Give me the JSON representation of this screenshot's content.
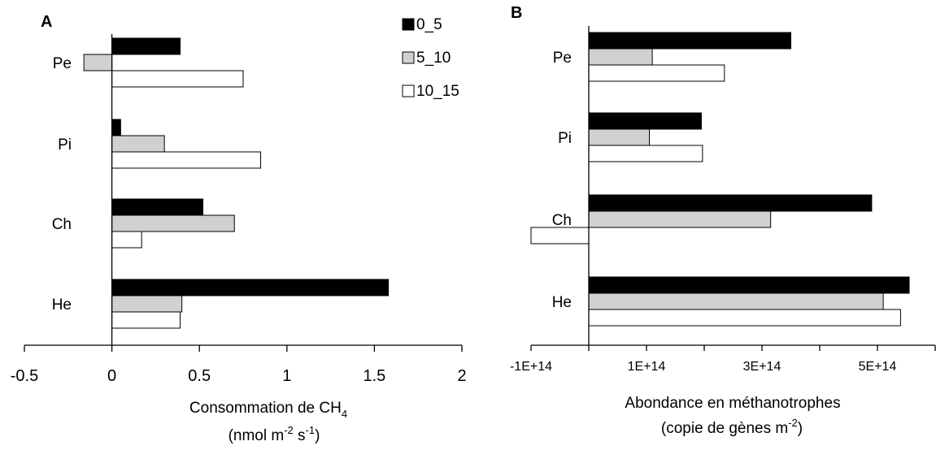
{
  "colors": {
    "s0_5": "#000000",
    "s5_10": "#d0d0d0",
    "s10_15": "#ffffff",
    "outline": "#000000"
  },
  "chart_data": [
    {
      "panel": "A",
      "type": "bar",
      "orientation": "horizontal",
      "categories": [
        "Pe",
        "Pi",
        "Ch",
        "He"
      ],
      "series": [
        {
          "name": "0_5",
          "values": [
            0.39,
            0.05,
            0.52,
            1.58
          ]
        },
        {
          "name": "5_10",
          "values": [
            -0.16,
            0.3,
            0.7,
            0.4
          ]
        },
        {
          "name": "10_15",
          "values": [
            0.75,
            0.85,
            0.17,
            0.39
          ]
        }
      ],
      "xlim": [
        -0.5,
        2
      ],
      "xticks": [
        "-0.5",
        "0",
        "0.5",
        "1",
        "1.5",
        "2"
      ],
      "xlabel": {
        "main": "Consommation de CH",
        "sub": "4",
        "unit_a": "(nmol m",
        "sup1": "-2",
        "unit_b": " s",
        "sup2": "-1",
        "unit_c": ")"
      },
      "legend": {
        "placement": "top-right",
        "entries": [
          "0_5",
          "5_10",
          "10_15"
        ]
      },
      "grid": false
    },
    {
      "panel": "B",
      "type": "bar",
      "orientation": "horizontal",
      "categories": [
        "Pe",
        "Pi",
        "Ch",
        "He"
      ],
      "series": [
        {
          "name": "0_5",
          "values": [
            350000000000000.0,
            195000000000000.0,
            490000000000000.0,
            555000000000000.0
          ]
        },
        {
          "name": "5_10",
          "values": [
            110000000000000.0,
            105000000000000.0,
            315000000000000.0,
            510000000000000.0
          ]
        },
        {
          "name": "10_15",
          "values": [
            235000000000000.0,
            197000000000000.0,
            -100000000000000.0,
            540000000000000.0
          ]
        }
      ],
      "xlim": [
        -100000000000000.0,
        600000000000000.0
      ],
      "xticks": [
        "-1E+14",
        "1E+14",
        "3E+14",
        "5E+14"
      ],
      "xlabel": {
        "main": "Abondance en méthanotrophes",
        "unit_a": "(copie de gènes m",
        "sup1": "-2",
        "unit_c": ")"
      },
      "legend": null,
      "grid": false
    }
  ]
}
